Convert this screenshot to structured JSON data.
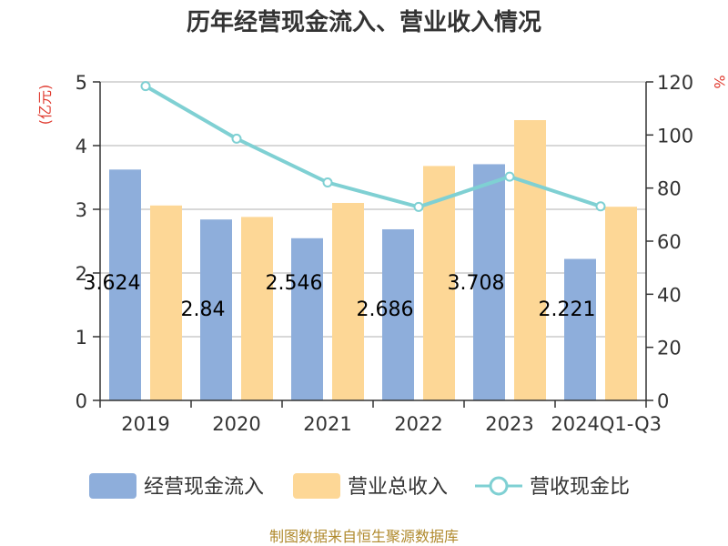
{
  "chart_data": {
    "type": "bar",
    "title": "历年经营现金流入、营业收入情况",
    "categories": [
      "2019",
      "2020",
      "2021",
      "2022",
      "2023",
      "2024Q1-Q3"
    ],
    "left_unit": "(亿元)",
    "right_unit": "%",
    "ylim_left": [
      0,
      5
    ],
    "yticks_left": [
      "0",
      "1",
      "2",
      "3",
      "4",
      "5"
    ],
    "ylim_right": [
      0,
      120
    ],
    "yticks_right": [
      "0",
      "20",
      "40",
      "60",
      "80",
      "100",
      "120"
    ],
    "grid": true,
    "legend_position": "bottom",
    "series": [
      {
        "name": "经营现金流入",
        "kind": "bar",
        "axis": "left",
        "color": "#8eaedb",
        "values": [
          3.624,
          2.84,
          2.546,
          2.686,
          3.708,
          2.221
        ],
        "labels": [
          "3.624",
          "2.84",
          "2.546",
          "2.686",
          "3.708",
          "2.221"
        ]
      },
      {
        "name": "营业总收入",
        "kind": "bar",
        "axis": "left",
        "color": "#fdd796",
        "values": [
          3.06,
          2.88,
          3.1,
          3.68,
          4.4,
          3.04
        ]
      },
      {
        "name": "营收现金比",
        "kind": "line",
        "axis": "right",
        "color": "#7fd0d3",
        "values": [
          118.4,
          98.6,
          82.1,
          72.9,
          84.3,
          73.1
        ]
      }
    ]
  },
  "source": "制图数据来自恒生聚源数据库"
}
